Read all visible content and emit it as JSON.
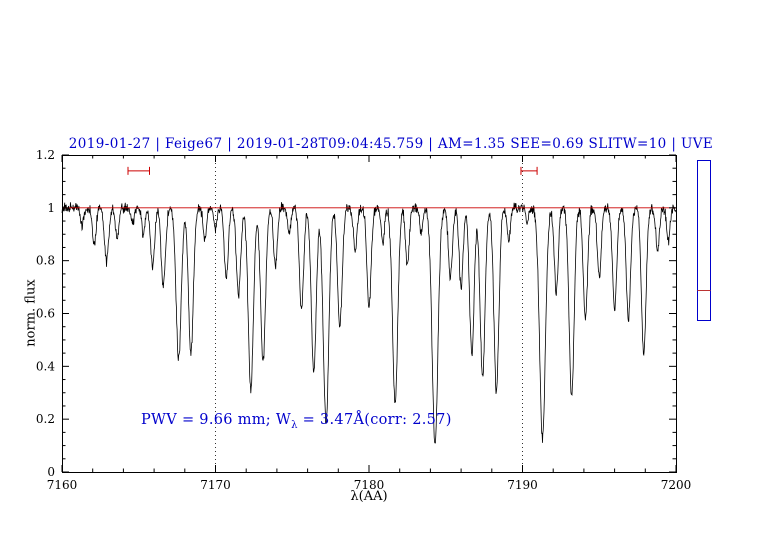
{
  "figure": {
    "title": "2019-01-27 | Feige67 | 2019-01-28T09:04:45.759 | AM=1.35 SEE=0.69 SLITW=10 | UVE",
    "title_color": "#0000cc",
    "xlabel": "λ(AA)",
    "ylabel": "norm. flux",
    "annotation": {
      "prefix": "PWV = 9.66 mm; W",
      "sub": "λ",
      "suffix": " = 3.47Å(corr: 2.57)",
      "color": "#0000cc"
    }
  },
  "side_panel": {
    "border_color": "#0000cc",
    "line_color": "#bb3333"
  },
  "chart_data": {
    "type": "line",
    "title": "2019-01-27 | Feige67 | 2019-01-28T09:04:45.759 | AM=1.35 SEE=0.69 SLITW=10 | UVE",
    "xlabel": "λ(AA)",
    "ylabel": "norm. flux",
    "xlim": [
      7160,
      7200
    ],
    "ylim": [
      0,
      1.2
    ],
    "x_ticks": [
      7160,
      7170,
      7180,
      7190,
      7200
    ],
    "x_minor_step": 2,
    "y_ticks": [
      0,
      0.2,
      0.4,
      0.6,
      0.8,
      1,
      1.2
    ],
    "y_minor_step": 0.05,
    "grid_lines_x": [
      7170,
      7190
    ],
    "line_color": "#000000",
    "continuum_level": 1.0,
    "continuum": {
      "y": 1.0,
      "color": "#cc0000"
    },
    "noise_amplitude": 0.012,
    "marker_color": "#cc0000",
    "telluric_markers": [
      {
        "x_start": 7164.3,
        "x_end": 7165.7,
        "y": 1.14
      },
      {
        "x_start": 7189.9,
        "x_end": 7190.95,
        "y": 1.14
      }
    ],
    "absorption_lines_format": "[center_angstrom, depth_below_continuum, sigma_angstrom]",
    "absorption_lines": [
      [
        7161.3,
        0.07,
        0.1
      ],
      [
        7162.1,
        0.14,
        0.12
      ],
      [
        7162.9,
        0.2,
        0.14
      ],
      [
        7163.6,
        0.12,
        0.11
      ],
      [
        7164.6,
        0.06,
        0.1
      ],
      [
        7165.3,
        0.1,
        0.11
      ],
      [
        7165.9,
        0.22,
        0.13
      ],
      [
        7166.6,
        0.3,
        0.14
      ],
      [
        7167.6,
        0.57,
        0.17
      ],
      [
        7168.4,
        0.55,
        0.16
      ],
      [
        7169.3,
        0.12,
        0.11
      ],
      [
        7170.0,
        0.08,
        0.1
      ],
      [
        7170.7,
        0.27,
        0.13
      ],
      [
        7171.5,
        0.33,
        0.14
      ],
      [
        7172.3,
        0.68,
        0.17
      ],
      [
        7173.1,
        0.58,
        0.16
      ],
      [
        7173.9,
        0.22,
        0.12
      ],
      [
        7174.8,
        0.1,
        0.1
      ],
      [
        7175.6,
        0.38,
        0.14
      ],
      [
        7176.4,
        0.62,
        0.16
      ],
      [
        7177.2,
        0.82,
        0.18
      ],
      [
        7178.1,
        0.45,
        0.15
      ],
      [
        7179.1,
        0.16,
        0.12
      ],
      [
        7180.0,
        0.37,
        0.14
      ],
      [
        7180.9,
        0.14,
        0.11
      ],
      [
        7181.7,
        0.74,
        0.17
      ],
      [
        7182.5,
        0.22,
        0.12
      ],
      [
        7183.4,
        0.1,
        0.1
      ],
      [
        7184.3,
        0.89,
        0.19
      ],
      [
        7185.3,
        0.26,
        0.13
      ],
      [
        7186.0,
        0.3,
        0.13
      ],
      [
        7186.7,
        0.55,
        0.15
      ],
      [
        7187.4,
        0.64,
        0.16
      ],
      [
        7188.3,
        0.69,
        0.16
      ],
      [
        7189.1,
        0.13,
        0.11
      ],
      [
        7190.3,
        0.05,
        0.1
      ],
      [
        7191.3,
        0.87,
        0.19
      ],
      [
        7192.2,
        0.32,
        0.13
      ],
      [
        7193.2,
        0.72,
        0.16
      ],
      [
        7194.1,
        0.42,
        0.14
      ],
      [
        7195.0,
        0.26,
        0.13
      ],
      [
        7196.0,
        0.38,
        0.14
      ],
      [
        7196.9,
        0.42,
        0.14
      ],
      [
        7197.9,
        0.55,
        0.15
      ],
      [
        7198.8,
        0.16,
        0.12
      ],
      [
        7199.5,
        0.13,
        0.11
      ]
    ]
  }
}
